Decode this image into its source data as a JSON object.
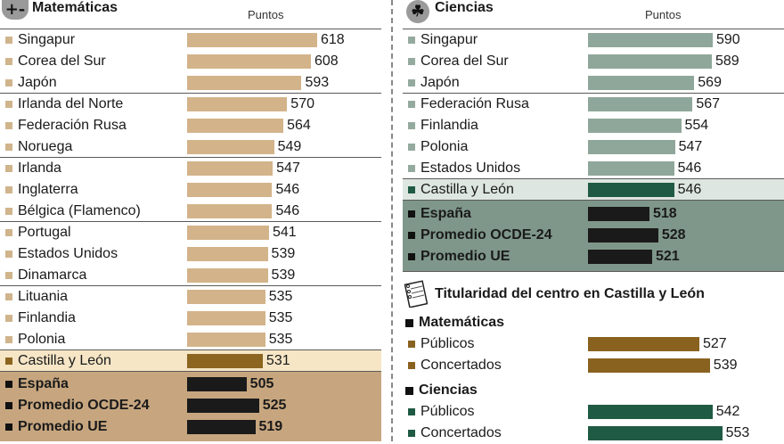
{
  "left": {
    "title": "Matemáticas",
    "icon_name": "plus-minus-symbol-icon",
    "icon_glyph": "+-",
    "col_header": "Puntos"
  },
  "right": {
    "title": "Ciencias",
    "icon_name": "atom-symbol-icon",
    "icon_glyph": "☘",
    "col_header": "Puntos"
  },
  "titularidad": {
    "title": "Titularidad del centro en Castilla y León",
    "icon_name": "notebook-icon"
  },
  "colors": {
    "math_bar": "#d3b38a",
    "math_highlight_bar": "#8c6520",
    "math_highlight_band": "#f6e6c6",
    "math_summary_band": "#c7a67f",
    "sci_bar": "#8fa79a",
    "sci_highlight_bar": "#1f5a44",
    "sci_highlight_band": "#dde6e0",
    "sci_summary_band": "#7f978a",
    "summary_bar": "#1a1a1a",
    "tit_math_bar": "#8a6220",
    "tit_sci_bar": "#1f5a44",
    "math_marker": "#d0b48c",
    "sci_marker": "#95aa9e"
  },
  "chart_data": [
    {
      "type": "bar",
      "title": "Matemáticas",
      "ylabel": "Puntos",
      "categories": [
        "Singapur",
        "Corea del Sur",
        "Japón",
        "Irlanda del Norte",
        "Federación Rusa",
        "Noruega",
        "Irlanda",
        "Inglaterra",
        "Bélgica (Flamenco)",
        "Portugal",
        "Estados Unidos",
        "Dinamarca",
        "Lituania",
        "Finlandia",
        "Polonia",
        "Castilla y León",
        "España",
        "Promedio OCDE-24",
        "Promedio UE"
      ],
      "values": [
        618,
        608,
        593,
        570,
        564,
        549,
        547,
        546,
        546,
        541,
        539,
        539,
        535,
        535,
        535,
        531,
        505,
        525,
        519
      ],
      "highlighted": [
        "Castilla y León"
      ],
      "summary": [
        "España",
        "Promedio OCDE-24",
        "Promedio UE"
      ]
    },
    {
      "type": "bar",
      "title": "Ciencias",
      "ylabel": "Puntos",
      "categories": [
        "Singapur",
        "Corea del Sur",
        "Japón",
        "Federación Rusa",
        "Finlandia",
        "Polonia",
        "Estados Unidos",
        "Castilla y León",
        "España",
        "Promedio OCDE-24",
        "Promedio UE"
      ],
      "values": [
        590,
        589,
        569,
        567,
        554,
        547,
        546,
        546,
        518,
        528,
        521
      ],
      "highlighted": [
        "Castilla y León"
      ],
      "summary": [
        "España",
        "Promedio OCDE-24",
        "Promedio UE"
      ]
    },
    {
      "type": "bar",
      "title": "Titularidad del centro en Castilla y León",
      "series": [
        {
          "name": "Matemáticas",
          "categories": [
            "Públicos",
            "Concertados"
          ],
          "values": [
            527,
            539
          ]
        },
        {
          "name": "Ciencias",
          "categories": [
            "Públicos",
            "Concertados"
          ],
          "values": [
            542,
            553
          ]
        }
      ]
    }
  ]
}
